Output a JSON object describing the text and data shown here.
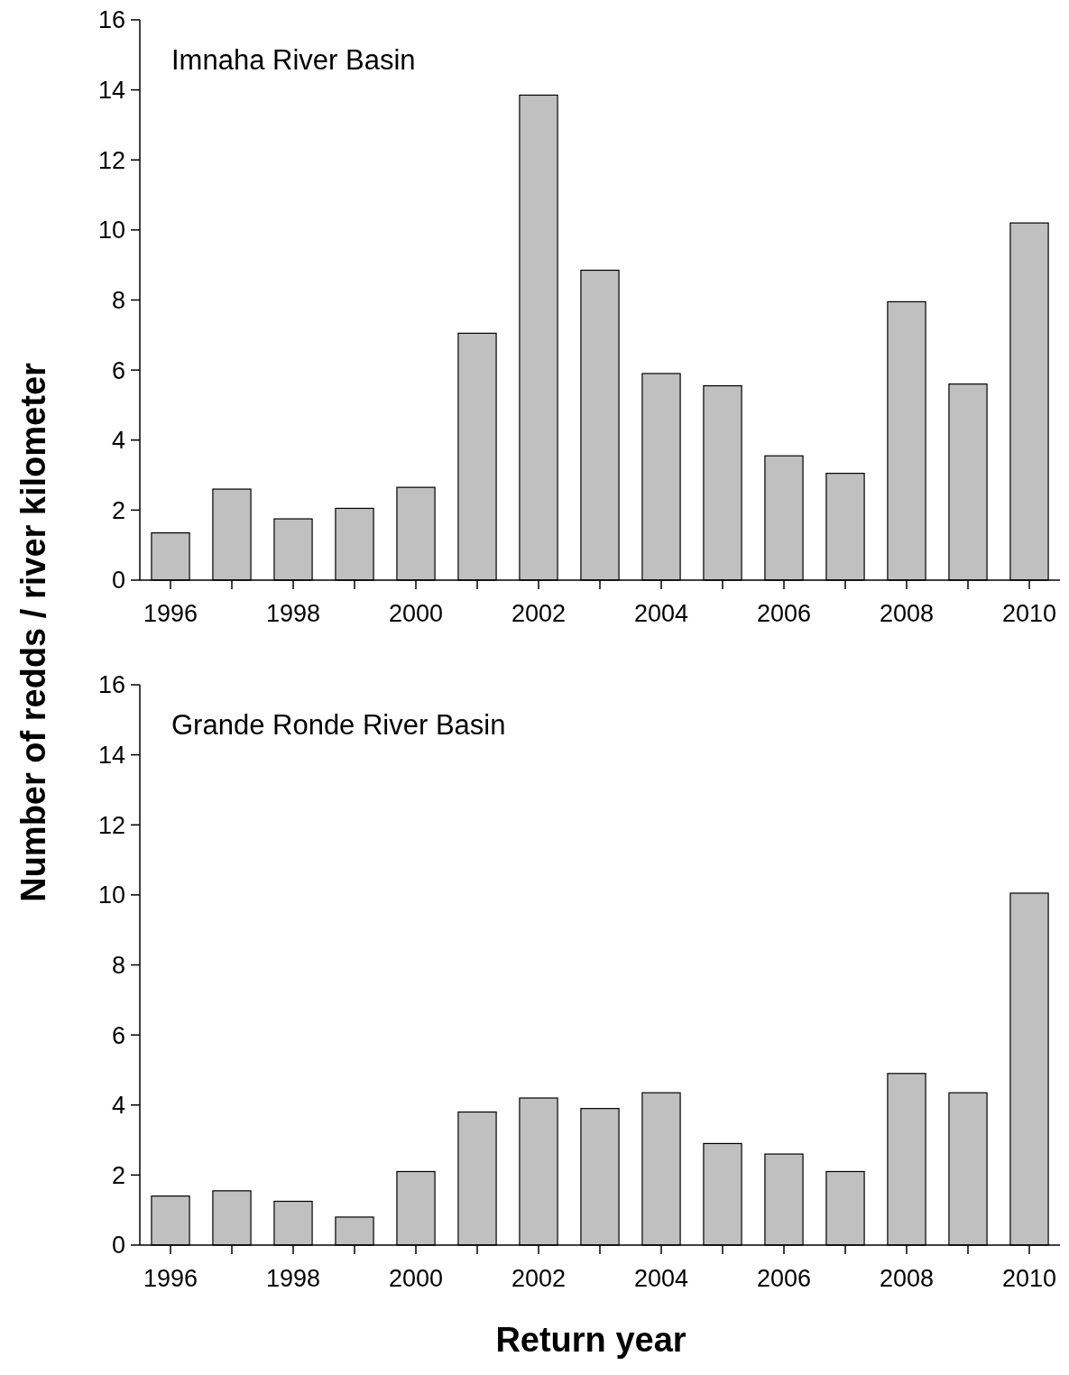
{
  "chart_data": [
    {
      "type": "bar",
      "title": "Imnaha River Basin",
      "ylabel": "Number of redds / river kilometer",
      "categories": [
        "1996",
        null,
        "1998",
        null,
        "2000",
        null,
        "2002",
        null,
        "2004",
        null,
        "2006",
        null,
        "2008",
        null,
        "2010"
      ],
      "values": [
        1.35,
        2.6,
        1.75,
        2.05,
        2.65,
        7.05,
        13.85,
        8.85,
        5.9,
        5.55,
        3.55,
        3.05,
        7.95,
        5.6,
        10.2
      ],
      "color": "#c0c0c0",
      "ylim": [
        0,
        16
      ],
      "yticks": [
        0,
        2,
        4,
        6,
        8,
        10,
        12,
        14,
        16
      ],
      "grid": false
    },
    {
      "type": "bar",
      "title": "Grande Ronde River Basin",
      "xlabel": "Return year",
      "categories": [
        "1996",
        null,
        "1998",
        null,
        "2000",
        null,
        "2002",
        null,
        "2004",
        null,
        "2006",
        null,
        "2008",
        null,
        "2010"
      ],
      "values": [
        1.4,
        1.55,
        1.25,
        0.8,
        2.1,
        3.8,
        4.2,
        3.9,
        4.35,
        2.9,
        2.6,
        2.1,
        4.9,
        4.35,
        10.05
      ],
      "color": "#c0c0c0",
      "ylim": [
        0,
        16
      ],
      "yticks": [
        0,
        2,
        4,
        6,
        8,
        10,
        12,
        14,
        16
      ],
      "grid": false
    }
  ]
}
